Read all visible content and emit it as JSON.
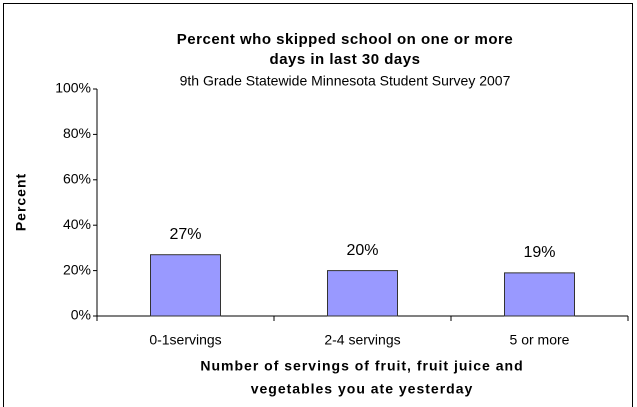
{
  "chart_data": {
    "type": "bar",
    "title": [
      "Percent who skipped school on one or more",
      "days in last 30 days"
    ],
    "subtitle": "9th Grade Statewide Minnesota Student Survey 2007",
    "y_label": "Percent",
    "x_label": [
      "Number of servings of fruit, fruit juice and",
      "vegetables you ate yesterday"
    ],
    "categories": [
      "0-1servings",
      "2-4 servings",
      "5 or more"
    ],
    "values": [
      27,
      20,
      19
    ],
    "value_labels": [
      "27%",
      "20%",
      "19%"
    ],
    "color": "#9999ff",
    "ylim": [
      0,
      100
    ],
    "yticks": [
      {
        "value": 0,
        "label": "0%"
      },
      {
        "value": 20,
        "label": "20%"
      },
      {
        "value": 40,
        "label": "40%"
      },
      {
        "value": 60,
        "label": "60%"
      },
      {
        "value": 80,
        "label": "80%"
      },
      {
        "value": 100,
        "label": "100%"
      }
    ],
    "grid": false
  }
}
